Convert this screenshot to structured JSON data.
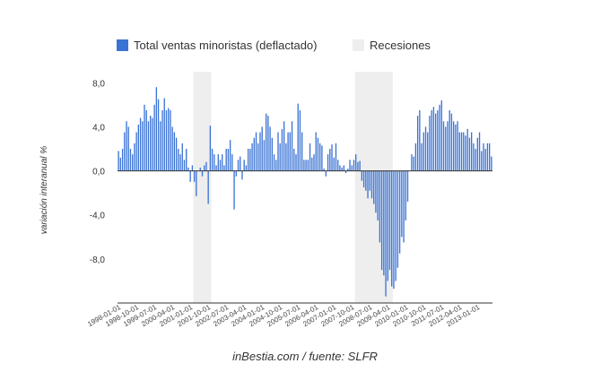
{
  "chart_data": {
    "type": "bar",
    "start_month": "1998-01",
    "ylabel": "variación interanual %",
    "ylim": [
      -12,
      9
    ],
    "y_ticks": [
      "8,0",
      "4,0",
      "0,0",
      "-4,0",
      "-8,0"
    ],
    "y_tick_values": [
      8,
      4,
      0,
      -4,
      -8
    ],
    "grid": false,
    "legend_position": "top",
    "legend": [
      {
        "label": "Total ventas minoristas (deflactado)",
        "color": "#3a73d4",
        "type": "bar"
      },
      {
        "label": "Recesiones",
        "color": "#eeeeee",
        "type": "band"
      }
    ],
    "x_ticks": [
      "1998-01-01",
      "1998-10-01",
      "1999-07-01",
      "2000-04-01",
      "2001-01-01",
      "2001-10-01",
      "2002-07-01",
      "2003-04-01",
      "2004-01-01",
      "2004-10-01",
      "2005-07-01",
      "2006-04-01",
      "2007-01-01",
      "2007-10-01",
      "2008-07-01",
      "2009-04-01",
      "2010-01-01",
      "2010-10-01",
      "2011-07-01",
      "2012-04-01",
      "2013-01-01"
    ],
    "recessions": [
      {
        "start": "2001-03",
        "end": "2001-11"
      },
      {
        "start": "2007-12",
        "end": "2009-06"
      }
    ],
    "series": [
      {
        "name": "Total ventas minoristas (deflactado)",
        "values": [
          1.8,
          1.2,
          2.0,
          3.5,
          4.5,
          4.0,
          2.0,
          1.5,
          2.5,
          3.5,
          4.2,
          4.8,
          4.5,
          6.0,
          5.5,
          4.5,
          5.0,
          4.8,
          6.0,
          7.6,
          6.5,
          4.5,
          5.5,
          6.6,
          5.5,
          5.7,
          5.5,
          4.0,
          3.5,
          3.0,
          2.0,
          1.5,
          2.5,
          1.0,
          2.0,
          0.3,
          -1.0,
          0.5,
          -1.0,
          -2.3,
          0.0,
          0.3,
          -0.5,
          0.5,
          0.8,
          -3.0,
          4.1,
          2.0,
          1.5,
          0.5,
          1.5,
          1.0,
          1.5,
          0.5,
          2.0,
          2.0,
          2.8,
          1.5,
          -3.5,
          -0.5,
          1.0,
          1.3,
          -0.8,
          1.0,
          0.5,
          2.0,
          2.0,
          2.5,
          3.0,
          3.5,
          2.5,
          3.5,
          4.0,
          2.8,
          5.2,
          5.0,
          4.0,
          3.0,
          1.5,
          1.0,
          3.5,
          2.5,
          3.8,
          4.5,
          2.5,
          3.5,
          3.5,
          4.5,
          2.0,
          1.5,
          6.1,
          5.5,
          3.5,
          1.0,
          1.0,
          1.0,
          2.5,
          1.2,
          1.5,
          3.5,
          3.0,
          2.5,
          2.3,
          0.2,
          -0.5,
          1.5,
          2.0,
          2.4,
          1.2,
          2.5,
          1.0,
          0.5,
          0.3,
          0.5,
          -0.2,
          0.2,
          1.0,
          0.5,
          1.0,
          1.5,
          0.8,
          0.9,
          -0.9,
          -1.5,
          -1.8,
          -2.5,
          -1.8,
          -2.5,
          -3.0,
          -3.8,
          -4.5,
          -6.5,
          -9.0,
          -9.5,
          -11.4,
          -10.0,
          -9.0,
          -10.5,
          -10.7,
          -10.0,
          -8.8,
          -7.5,
          -6.0,
          -6.5,
          -4.5,
          -2.8,
          0.0,
          1.5,
          1.3,
          2.5,
          5.0,
          5.5,
          2.5,
          3.5,
          4.0,
          3.5,
          5.0,
          5.5,
          5.8,
          5.2,
          5.5,
          6.0,
          6.4,
          4.5,
          4.0,
          4.5,
          5.5,
          5.2,
          4.5,
          4.2,
          4.5,
          3.5,
          3.5,
          3.5,
          3.2,
          3.8,
          3.0,
          3.5,
          2.5,
          2.0,
          3.0,
          3.5,
          1.8,
          2.5,
          2.0,
          2.5,
          2.5,
          1.3
        ]
      }
    ]
  },
  "source_text": "inBestia.com / fuente: SLFR"
}
